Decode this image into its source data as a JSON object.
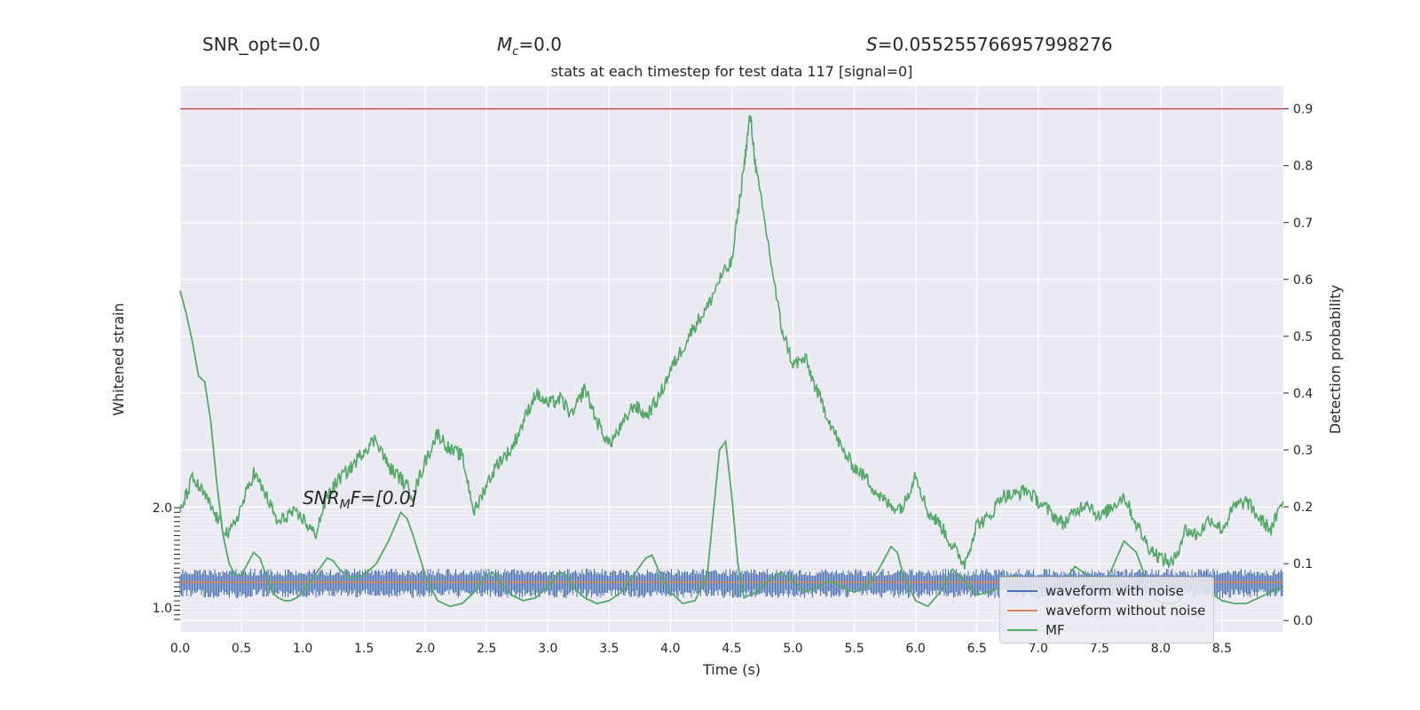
{
  "header": {
    "snr_opt": "SNR_opt=0.0",
    "mc_symbol": "M",
    "mc_sub": "c",
    "mc_value": "=0.0",
    "s_symbol": "S",
    "s_value": "=0.055255766957998276"
  },
  "chart_data": {
    "type": "line",
    "title": "stats at each timestep for test data 117 [signal=0]",
    "xlabel": "Time (s)",
    "ylabel_left": "Whitened strain",
    "ylabel_right": "Detection probability",
    "xlim": [
      0.0,
      9.0
    ],
    "ylim_right": [
      -0.02,
      0.94
    ],
    "ylim_left": [
      -1.0,
      2.0
    ],
    "x_ticks": [
      "0.0",
      "0.5",
      "1.0",
      "1.5",
      "2.0",
      "2.5",
      "3.0",
      "3.5",
      "4.0",
      "4.5",
      "5.0",
      "5.5",
      "6.0",
      "6.5",
      "7.0",
      "7.5",
      "8.0",
      "8.5"
    ],
    "y_ticks_right": [
      "0.0",
      "0.1",
      "0.2",
      "0.3",
      "0.4",
      "0.5",
      "0.6",
      "0.7",
      "0.8",
      "0.9"
    ],
    "y_ticks_left_top": "2.0",
    "y_ticks_left_bottom": "1.0",
    "threshold": 0.9,
    "threshold_color": "#c44e52",
    "annotation": {
      "prefix": "SNR",
      "sub": "M",
      "suffix": "F=[0.0]"
    },
    "grid": true,
    "legend_position": "bottom-right",
    "series": [
      {
        "name": "waveform with noise",
        "color": "#4c72b0",
        "axis": "left",
        "band_center": 0.0,
        "band_amplitude": 0.45
      },
      {
        "name": "waveform without noise",
        "color": "#dd8452",
        "axis": "left",
        "values_constant": 0.0
      },
      {
        "name": "MF",
        "color": "#55a868",
        "axis": "right",
        "smooth_x": [
          0.0,
          0.05,
          0.1,
          0.15,
          0.2,
          0.25,
          0.3,
          0.35,
          0.4,
          0.45,
          0.5,
          0.55,
          0.6,
          0.65,
          0.7,
          0.75,
          0.8,
          0.85,
          0.9,
          0.95,
          1.0,
          1.1,
          1.2,
          1.25,
          1.3,
          1.4,
          1.5,
          1.6,
          1.7,
          1.8,
          1.85,
          1.9,
          2.0,
          2.1,
          2.2,
          2.3,
          2.4,
          2.5,
          2.55,
          2.6,
          2.7,
          2.8,
          2.9,
          3.0,
          3.1,
          3.15,
          3.2,
          3.3,
          3.4,
          3.5,
          3.6,
          3.7,
          3.8,
          3.85,
          3.9,
          4.0,
          4.1,
          4.2,
          4.3,
          4.4,
          4.45,
          4.5,
          4.55,
          4.6,
          4.7,
          4.8,
          4.9,
          5.0,
          5.1,
          5.2,
          5.3,
          5.4,
          5.5,
          5.6,
          5.7,
          5.8,
          5.85,
          5.9,
          6.0,
          6.1,
          6.2,
          6.3,
          6.4,
          6.5,
          6.6,
          6.7,
          6.8,
          6.9,
          7.0,
          7.1,
          7.2,
          7.3,
          7.4,
          7.5,
          7.6,
          7.7,
          7.8,
          7.85,
          7.9,
          8.0,
          8.1,
          8.15,
          8.2,
          8.3,
          8.4,
          8.5,
          8.6,
          8.7,
          8.8,
          8.9,
          9.0
        ],
        "smooth_y": [
          0.58,
          0.54,
          0.49,
          0.43,
          0.42,
          0.35,
          0.24,
          0.15,
          0.1,
          0.08,
          0.08,
          0.1,
          0.12,
          0.11,
          0.08,
          0.05,
          0.04,
          0.035,
          0.035,
          0.04,
          0.05,
          0.08,
          0.11,
          0.105,
          0.09,
          0.075,
          0.08,
          0.1,
          0.14,
          0.19,
          0.18,
          0.15,
          0.08,
          0.035,
          0.025,
          0.03,
          0.05,
          0.08,
          0.085,
          0.07,
          0.045,
          0.035,
          0.04,
          0.06,
          0.085,
          0.08,
          0.06,
          0.04,
          0.03,
          0.035,
          0.05,
          0.08,
          0.11,
          0.115,
          0.09,
          0.05,
          0.03,
          0.035,
          0.08,
          0.3,
          0.315,
          0.22,
          0.1,
          0.04,
          0.05,
          0.07,
          0.085,
          0.07,
          0.05,
          0.06,
          0.07,
          0.06,
          0.05,
          0.06,
          0.09,
          0.13,
          0.12,
          0.08,
          0.035,
          0.025,
          0.05,
          0.09,
          0.07,
          0.045,
          0.05,
          0.06,
          0.08,
          0.06,
          0.04,
          0.05,
          0.065,
          0.095,
          0.08,
          0.05,
          0.09,
          0.14,
          0.12,
          0.09,
          0.05,
          0.03,
          0.03,
          0.035,
          0.05,
          0.06,
          0.05,
          0.035,
          0.03,
          0.03,
          0.04,
          0.05,
          0.06
        ],
        "noisy_x": [
          0.0,
          0.1,
          0.2,
          0.3,
          0.4,
          0.5,
          0.6,
          0.7,
          0.8,
          0.9,
          1.0,
          1.1,
          1.2,
          1.3,
          1.4,
          1.5,
          1.6,
          1.7,
          1.8,
          1.9,
          2.0,
          2.1,
          2.2,
          2.3,
          2.4,
          2.5,
          2.6,
          2.7,
          2.8,
          2.9,
          3.0,
          3.1,
          3.2,
          3.3,
          3.4,
          3.5,
          3.6,
          3.7,
          3.8,
          3.9,
          4.0,
          4.1,
          4.2,
          4.3,
          4.4,
          4.5,
          4.6,
          4.65,
          4.7,
          4.8,
          4.9,
          5.0,
          5.1,
          5.2,
          5.3,
          5.4,
          5.5,
          5.6,
          5.7,
          5.8,
          5.9,
          6.0,
          6.1,
          6.2,
          6.3,
          6.4,
          6.5,
          6.6,
          6.7,
          6.8,
          6.9,
          7.0,
          7.1,
          7.2,
          7.3,
          7.4,
          7.5,
          7.6,
          7.7,
          7.8,
          7.9,
          8.0,
          8.1,
          8.2,
          8.3,
          8.4,
          8.5,
          8.6,
          8.7,
          8.8,
          8.9,
          9.0
        ],
        "noisy_y": [
          0.19,
          0.25,
          0.22,
          0.18,
          0.15,
          0.2,
          0.26,
          0.22,
          0.17,
          0.19,
          0.18,
          0.15,
          0.22,
          0.25,
          0.27,
          0.3,
          0.32,
          0.27,
          0.25,
          0.22,
          0.28,
          0.33,
          0.3,
          0.29,
          0.19,
          0.24,
          0.28,
          0.3,
          0.35,
          0.4,
          0.38,
          0.39,
          0.36,
          0.41,
          0.35,
          0.31,
          0.34,
          0.38,
          0.36,
          0.39,
          0.44,
          0.48,
          0.52,
          0.55,
          0.6,
          0.63,
          0.8,
          0.89,
          0.79,
          0.66,
          0.52,
          0.45,
          0.46,
          0.4,
          0.35,
          0.3,
          0.27,
          0.25,
          0.22,
          0.2,
          0.2,
          0.26,
          0.19,
          0.17,
          0.13,
          0.1,
          0.17,
          0.18,
          0.22,
          0.22,
          0.23,
          0.21,
          0.19,
          0.17,
          0.19,
          0.21,
          0.18,
          0.2,
          0.22,
          0.17,
          0.13,
          0.11,
          0.1,
          0.16,
          0.15,
          0.18,
          0.16,
          0.2,
          0.21,
          0.18,
          0.16,
          0.21
        ]
      }
    ]
  }
}
